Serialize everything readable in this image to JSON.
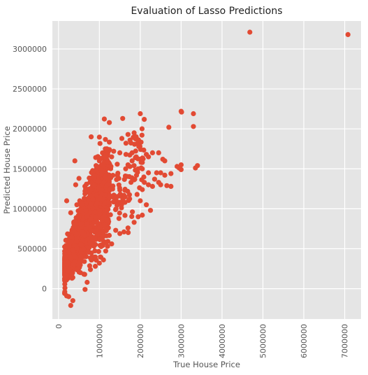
{
  "chart_data": {
    "type": "scatter",
    "title": "Evaluation of Lasso Predictions",
    "xlabel": "True House Price",
    "ylabel": "Predicted House Price",
    "xlim": [
      -150000,
      7400000
    ],
    "ylim": [
      -380000,
      3350000
    ],
    "x_ticks": [
      {
        "value": 0,
        "label": "0"
      },
      {
        "value": 1000000,
        "label": "1000000"
      },
      {
        "value": 2000000,
        "label": "2000000"
      },
      {
        "value": 3000000,
        "label": "3000000"
      },
      {
        "value": 4000000,
        "label": "4000000"
      },
      {
        "value": 5000000,
        "label": "5000000"
      },
      {
        "value": 6000000,
        "label": "6000000"
      },
      {
        "value": 7000000,
        "label": "7000000"
      }
    ],
    "y_ticks": [
      {
        "value": 0,
        "label": "0"
      },
      {
        "value": 500000,
        "label": "500000"
      },
      {
        "value": 1000000,
        "label": "1000000"
      },
      {
        "value": 1500000,
        "label": "1500000"
      },
      {
        "value": 2000000,
        "label": "2000000"
      },
      {
        "value": 2500000,
        "label": "2500000"
      },
      {
        "value": 3000000,
        "label": "3000000"
      }
    ],
    "grid": true,
    "style": {
      "background": "#e5e5e5",
      "grid_color": "#ffffff",
      "marker_color": "#e24a33"
    },
    "series": [
      {
        "points": [
          [
            4680000,
            3210000
          ],
          [
            7080000,
            3180000
          ],
          [
            3000000,
            2220000
          ],
          [
            3010000,
            2210000
          ],
          [
            3300000,
            2190000
          ],
          [
            2000000,
            2190000
          ],
          [
            1900000,
            1900000
          ],
          [
            800000,
            1900000
          ],
          [
            1850000,
            1950000
          ],
          [
            1570000,
            2130000
          ],
          [
            2700000,
            2020000
          ],
          [
            3300000,
            2030000
          ],
          [
            1700000,
            1930000
          ],
          [
            1750000,
            1860000
          ],
          [
            1550000,
            1880000
          ],
          [
            1650000,
            1820000
          ],
          [
            3400000,
            1540000
          ],
          [
            3350000,
            1510000
          ],
          [
            3000000,
            1550000
          ],
          [
            2950000,
            1510000
          ],
          [
            3000000,
            1490000
          ],
          [
            2900000,
            1530000
          ],
          [
            2750000,
            1440000
          ],
          [
            2600000,
            1420000
          ],
          [
            2500000,
            1450000
          ],
          [
            2650000,
            1290000
          ],
          [
            2750000,
            1280000
          ],
          [
            2450000,
            1330000
          ],
          [
            2350000,
            1370000
          ],
          [
            2500000,
            1300000
          ],
          [
            2300000,
            1280000
          ],
          [
            2200000,
            1300000
          ],
          [
            2400000,
            1450000
          ],
          [
            2200000,
            1450000
          ],
          [
            2050000,
            1500000
          ],
          [
            2100000,
            1330000
          ],
          [
            2550000,
            1620000
          ],
          [
            2600000,
            1600000
          ],
          [
            2450000,
            1700000
          ],
          [
            2200000,
            1650000
          ],
          [
            2300000,
            1700000
          ],
          [
            2150000,
            1680000
          ],
          [
            2000000,
            1620000
          ],
          [
            2050000,
            1580000
          ],
          [
            1800000,
            1700000
          ],
          [
            1650000,
            1680000
          ],
          [
            1500000,
            1700000
          ],
          [
            1350000,
            1720000
          ],
          [
            1300000,
            1650000
          ],
          [
            1200000,
            1580000
          ],
          [
            1100000,
            1550000
          ],
          [
            1000000,
            1600000
          ],
          [
            920000,
            1540000
          ],
          [
            1800000,
            1600000
          ],
          [
            1700000,
            1550000
          ],
          [
            1900000,
            1650000
          ],
          [
            1950000,
            1500000
          ],
          [
            2050000,
            1240000
          ],
          [
            2250000,
            980000
          ],
          [
            2150000,
            1050000
          ],
          [
            2000000,
            1100000
          ],
          [
            2050000,
            920000
          ],
          [
            1950000,
            900000
          ],
          [
            1850000,
            830000
          ],
          [
            1700000,
            760000
          ],
          [
            1600000,
            710000
          ],
          [
            1500000,
            690000
          ],
          [
            1400000,
            730000
          ],
          [
            1300000,
            560000
          ],
          [
            1200000,
            530000
          ],
          [
            1100000,
            360000
          ],
          [
            1000000,
            320000
          ],
          [
            900000,
            280000
          ],
          [
            700000,
            80000
          ],
          [
            650000,
            -10000
          ],
          [
            300000,
            -210000
          ],
          [
            250000,
            -100000
          ],
          [
            350000,
            -150000
          ],
          [
            200000,
            -90000
          ],
          [
            150000,
            -60000
          ],
          [
            400000,
            1600000
          ],
          [
            500000,
            1380000
          ],
          [
            420000,
            1300000
          ],
          [
            200000,
            1100000
          ],
          [
            520000,
            1100000
          ],
          [
            300000,
            950000
          ],
          [
            450000,
            1050000
          ]
        ]
      }
    ]
  }
}
